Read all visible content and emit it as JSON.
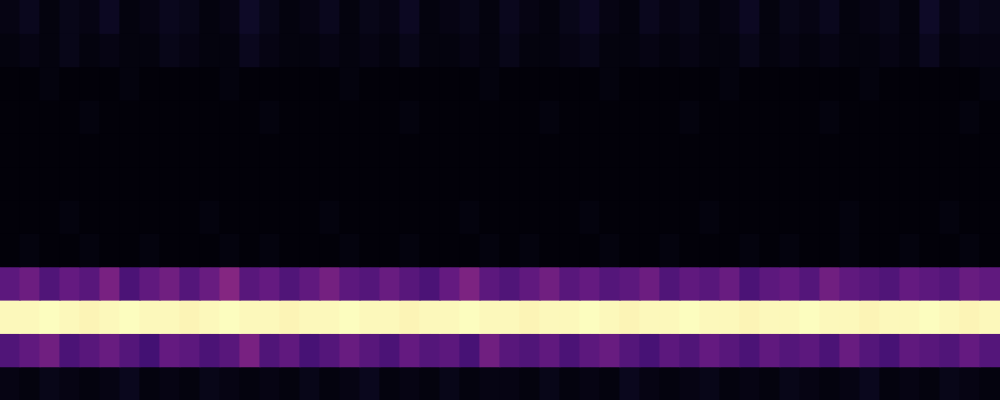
{
  "chart_data": {
    "type": "heatmap",
    "tick_labels": false,
    "grid": false,
    "zlim": [
      0,
      1
    ],
    "cells": [
      [
        0.03,
        0.05,
        0.02,
        0.04,
        0.03,
        0.06,
        0.02,
        0.03,
        0.05,
        0.04,
        0.02,
        0.03,
        0.07,
        0.04,
        0.02,
        0.03,
        0.05,
        0.02,
        0.04,
        0.03,
        0.06,
        0.02,
        0.03,
        0.04,
        0.02,
        0.05,
        0.03,
        0.02,
        0.04,
        0.06,
        0.03,
        0.02,
        0.05,
        0.03,
        0.04,
        0.02,
        0.03,
        0.06,
        0.02,
        0.04,
        0.03,
        0.05,
        0.02,
        0.03,
        0.04,
        0.02,
        0.07,
        0.03,
        0.05,
        0.04
      ],
      [
        0.02,
        0.03,
        0.02,
        0.04,
        0.02,
        0.03,
        0.02,
        0.02,
        0.04,
        0.03,
        0.02,
        0.02,
        0.05,
        0.03,
        0.02,
        0.02,
        0.03,
        0.02,
        0.03,
        0.02,
        0.04,
        0.02,
        0.02,
        0.03,
        0.02,
        0.04,
        0.02,
        0.02,
        0.03,
        0.04,
        0.02,
        0.02,
        0.03,
        0.02,
        0.03,
        0.02,
        0.02,
        0.04,
        0.02,
        0.03,
        0.02,
        0.03,
        0.02,
        0.02,
        0.03,
        0.02,
        0.05,
        0.02,
        0.03,
        0.03
      ],
      [
        0.01,
        0.01,
        0.02,
        0.01,
        0.01,
        0.01,
        0.02,
        0.01,
        0.01,
        0.01,
        0.01,
        0.02,
        0.01,
        0.01,
        0.01,
        0.01,
        0.01,
        0.02,
        0.01,
        0.01,
        0.01,
        0.01,
        0.01,
        0.01,
        0.02,
        0.01,
        0.01,
        0.01,
        0.01,
        0.01,
        0.02,
        0.01,
        0.01,
        0.01,
        0.01,
        0.01,
        0.02,
        0.01,
        0.01,
        0.01,
        0.01,
        0.01,
        0.01,
        0.02,
        0.01,
        0.01,
        0.01,
        0.01,
        0.01,
        0.02
      ],
      [
        0.01,
        0.01,
        0.01,
        0.01,
        0.02,
        0.01,
        0.01,
        0.01,
        0.01,
        0.01,
        0.01,
        0.01,
        0.01,
        0.02,
        0.01,
        0.01,
        0.01,
        0.01,
        0.01,
        0.01,
        0.02,
        0.01,
        0.01,
        0.01,
        0.01,
        0.01,
        0.01,
        0.02,
        0.01,
        0.01,
        0.01,
        0.01,
        0.01,
        0.01,
        0.02,
        0.01,
        0.01,
        0.01,
        0.01,
        0.01,
        0.01,
        0.02,
        0.01,
        0.01,
        0.01,
        0.01,
        0.01,
        0.01,
        0.02,
        0.01
      ],
      [
        0.01,
        0.01,
        0.01,
        0.01,
        0.01,
        0.01,
        0.01,
        0.01,
        0.01,
        0.01,
        0.01,
        0.01,
        0.01,
        0.01,
        0.01,
        0.01,
        0.01,
        0.01,
        0.01,
        0.01,
        0.01,
        0.01,
        0.01,
        0.01,
        0.01,
        0.01,
        0.01,
        0.01,
        0.01,
        0.01,
        0.01,
        0.01,
        0.01,
        0.01,
        0.01,
        0.01,
        0.01,
        0.01,
        0.01,
        0.01,
        0.01,
        0.01,
        0.01,
        0.01,
        0.01,
        0.01,
        0.01,
        0.01,
        0.01,
        0.01
      ],
      [
        0.01,
        0.01,
        0.01,
        0.01,
        0.01,
        0.01,
        0.01,
        0.01,
        0.01,
        0.01,
        0.01,
        0.01,
        0.01,
        0.01,
        0.01,
        0.01,
        0.01,
        0.01,
        0.01,
        0.01,
        0.01,
        0.01,
        0.01,
        0.01,
        0.01,
        0.01,
        0.01,
        0.01,
        0.01,
        0.01,
        0.01,
        0.01,
        0.01,
        0.01,
        0.01,
        0.01,
        0.01,
        0.01,
        0.01,
        0.01,
        0.01,
        0.01,
        0.01,
        0.01,
        0.01,
        0.01,
        0.01,
        0.01,
        0.01,
        0.01
      ],
      [
        0.01,
        0.01,
        0.01,
        0.02,
        0.01,
        0.01,
        0.01,
        0.01,
        0.01,
        0.01,
        0.02,
        0.01,
        0.01,
        0.01,
        0.01,
        0.01,
        0.02,
        0.01,
        0.01,
        0.01,
        0.01,
        0.01,
        0.01,
        0.02,
        0.01,
        0.01,
        0.01,
        0.01,
        0.01,
        0.02,
        0.01,
        0.01,
        0.01,
        0.01,
        0.01,
        0.02,
        0.01,
        0.01,
        0.01,
        0.01,
        0.01,
        0.01,
        0.02,
        0.01,
        0.01,
        0.01,
        0.01,
        0.02,
        0.01,
        0.01
      ],
      [
        0.01,
        0.02,
        0.01,
        0.01,
        0.02,
        0.01,
        0.01,
        0.02,
        0.01,
        0.01,
        0.01,
        0.02,
        0.01,
        0.02,
        0.01,
        0.01,
        0.01,
        0.02,
        0.01,
        0.01,
        0.02,
        0.01,
        0.01,
        0.01,
        0.02,
        0.01,
        0.02,
        0.01,
        0.01,
        0.01,
        0.02,
        0.01,
        0.01,
        0.02,
        0.01,
        0.01,
        0.01,
        0.02,
        0.01,
        0.02,
        0.01,
        0.01,
        0.02,
        0.01,
        0.01,
        0.02,
        0.01,
        0.01,
        0.02,
        0.01
      ],
      [
        0.28,
        0.32,
        0.25,
        0.3,
        0.27,
        0.35,
        0.24,
        0.29,
        0.33,
        0.26,
        0.31,
        0.38,
        0.27,
        0.3,
        0.25,
        0.29,
        0.34,
        0.28,
        0.26,
        0.31,
        0.27,
        0.24,
        0.3,
        0.36,
        0.28,
        0.25,
        0.29,
        0.33,
        0.27,
        0.3,
        0.26,
        0.28,
        0.32,
        0.25,
        0.29,
        0.27,
        0.31,
        0.24,
        0.28,
        0.3,
        0.26,
        0.33,
        0.29,
        0.27,
        0.25,
        0.3,
        0.28,
        0.26,
        0.31,
        0.29
      ],
      [
        0.99,
        0.99,
        1.0,
        0.99,
        0.98,
        0.99,
        1.0,
        0.99,
        0.99,
        0.98,
        0.99,
        1.0,
        0.99,
        0.99,
        0.98,
        0.99,
        0.99,
        1.0,
        0.99,
        0.99,
        0.98,
        0.99,
        0.99,
        1.0,
        0.99,
        0.99,
        0.98,
        0.99,
        0.99,
        1.0,
        0.99,
        0.98,
        0.99,
        0.99,
        1.0,
        0.99,
        0.99,
        0.98,
        0.99,
        0.99,
        1.0,
        0.99,
        0.99,
        0.98,
        0.99,
        0.99,
        1.0,
        0.99,
        0.98,
        0.99
      ],
      [
        0.25,
        0.29,
        0.33,
        0.24,
        0.27,
        0.31,
        0.26,
        0.22,
        0.3,
        0.28,
        0.24,
        0.27,
        0.35,
        0.25,
        0.29,
        0.23,
        0.26,
        0.31,
        0.27,
        0.24,
        0.3,
        0.26,
        0.28,
        0.23,
        0.33,
        0.27,
        0.25,
        0.29,
        0.24,
        0.28,
        0.31,
        0.26,
        0.23,
        0.28,
        0.25,
        0.3,
        0.27,
        0.24,
        0.29,
        0.26,
        0.28,
        0.24,
        0.31,
        0.26,
        0.23,
        0.29,
        0.27,
        0.25,
        0.3,
        0.26
      ],
      [
        0.03,
        0.02,
        0.04,
        0.03,
        0.02,
        0.03,
        0.05,
        0.02,
        0.03,
        0.02,
        0.04,
        0.03,
        0.02,
        0.03,
        0.02,
        0.04,
        0.02,
        0.03,
        0.05,
        0.02,
        0.03,
        0.02,
        0.04,
        0.02,
        0.03,
        0.03,
        0.02,
        0.04,
        0.02,
        0.03,
        0.02,
        0.05,
        0.03,
        0.02,
        0.03,
        0.04,
        0.02,
        0.03,
        0.02,
        0.04,
        0.03,
        0.02,
        0.03,
        0.05,
        0.02,
        0.03,
        0.02,
        0.04,
        0.03,
        0.02
      ]
    ]
  }
}
